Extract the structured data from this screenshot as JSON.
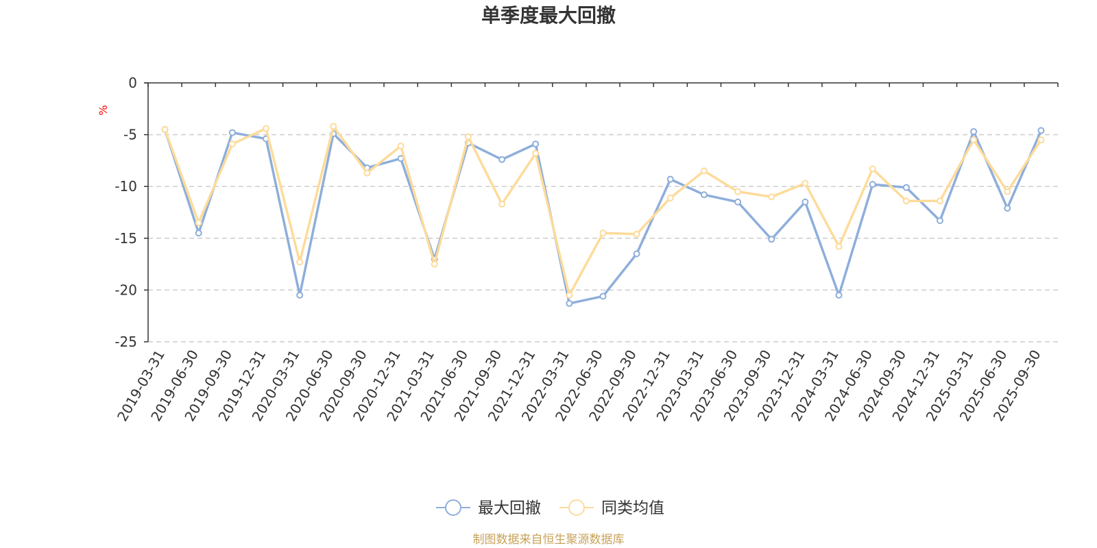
{
  "chart_data": {
    "type": "line",
    "title": "单季度最大回撤",
    "unit_label": "%",
    "ylim": [
      -25,
      0
    ],
    "y_ticks": [
      0,
      -5,
      -10,
      -15,
      -20,
      -25
    ],
    "grid": "horizontal dashed",
    "legend_position": "bottom-center",
    "categories": [
      "2019-03-31",
      "2019-06-30",
      "2019-09-30",
      "2019-12-31",
      "2020-03-31",
      "2020-06-30",
      "2020-09-30",
      "2020-12-31",
      "2021-03-31",
      "2021-06-30",
      "2021-09-30",
      "2021-12-31",
      "2022-03-31",
      "2022-06-30",
      "2022-09-30",
      "2022-12-31",
      "2023-03-31",
      "2023-06-30",
      "2023-09-30",
      "2023-12-31",
      "2024-03-31",
      "2024-06-30",
      "2024-09-30",
      "2024-12-31",
      "2025-03-31",
      "2025-06-30",
      "2025-09-30"
    ],
    "series": [
      {
        "name": "最大回撤",
        "color": "#8eaedb",
        "values": [
          -4.5,
          -14.5,
          -4.8,
          -5.4,
          -20.5,
          -4.9,
          -8.2,
          -7.3,
          -17.0,
          -5.8,
          -7.4,
          -5.9,
          -21.3,
          -20.6,
          -16.5,
          -9.3,
          -10.8,
          -11.5,
          -15.1,
          -11.5,
          -20.5,
          -9.8,
          -10.1,
          -13.3,
          -4.7,
          -12.1,
          -4.6
        ]
      },
      {
        "name": "同类均值",
        "color": "#fddb9a",
        "values": [
          -4.5,
          -13.5,
          -5.9,
          -4.4,
          -17.3,
          -4.2,
          -8.7,
          -6.1,
          -17.5,
          -5.2,
          -11.7,
          -6.8,
          -20.5,
          -14.5,
          -14.6,
          -11.1,
          -8.5,
          -10.5,
          -11.0,
          -9.7,
          -15.8,
          -8.3,
          -11.4,
          -11.4,
          -5.5,
          -10.5,
          -5.5
        ]
      }
    ]
  },
  "footer": {
    "source": "制图数据来自恒生聚源数据库"
  }
}
